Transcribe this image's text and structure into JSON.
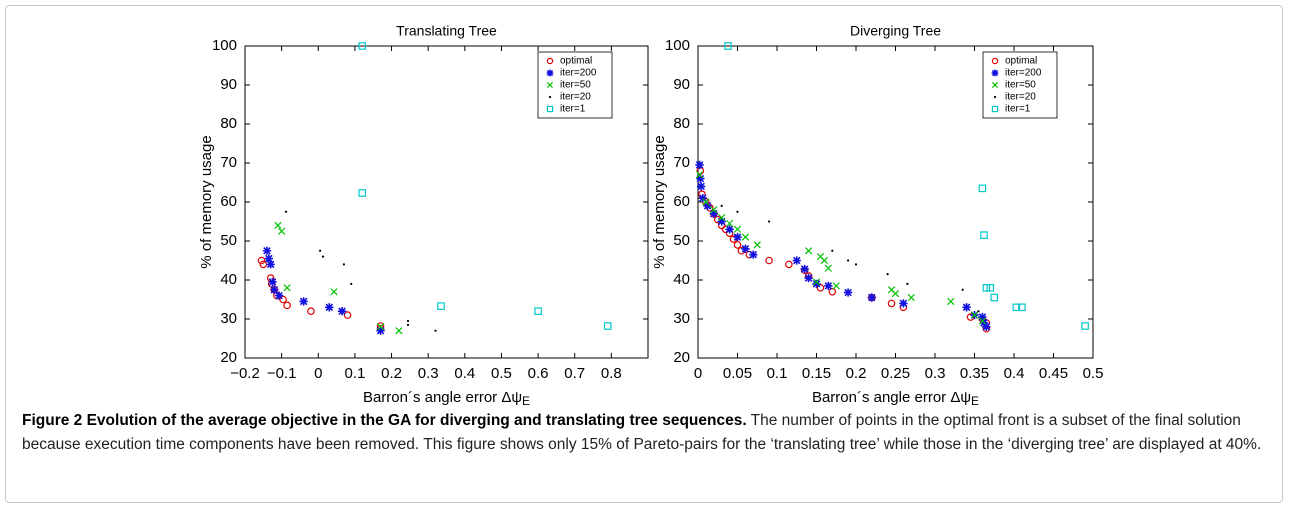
{
  "chart_data": [
    {
      "type": "scatter",
      "title": "Translating Tree",
      "xlabel": {
        "text": "Barron´s angle error Δψ",
        "subscript": "E"
      },
      "ylabel": "% of memory usage",
      "xlim": [
        -0.2,
        0.9
      ],
      "ylim": [
        20,
        100
      ],
      "xticks": [
        {
          "value": -0.2,
          "label": "−0.2"
        },
        {
          "value": -0.1,
          "label": "−0.1"
        },
        0,
        0.1,
        0.2,
        0.3,
        0.4,
        0.5,
        0.6,
        0.7,
        0.8
      ],
      "yticks": [
        20,
        30,
        40,
        50,
        60,
        70,
        80,
        90,
        100
      ],
      "legend": "upper right",
      "series": [
        {
          "name": "optimal",
          "color": "#e00000",
          "marker": "circle",
          "x": [
            -0.155,
            -0.15,
            -0.13,
            -0.127,
            -0.12,
            -0.113,
            -0.096,
            -0.085,
            -0.02,
            0.08,
            0.17,
            0.17
          ],
          "values": [
            45,
            44,
            40.5,
            39,
            37.5,
            36,
            35,
            33.5,
            32,
            31,
            28.2,
            27.5
          ]
        },
        {
          "name": "iter=200",
          "color": "#1010e0",
          "marker": "star",
          "x": [
            -0.14,
            -0.135,
            -0.13,
            -0.125,
            -0.12,
            -0.107,
            -0.04,
            0.03,
            0.065,
            0.17
          ],
          "values": [
            47.5,
            45.5,
            44,
            39.5,
            37.5,
            36,
            34.5,
            33,
            32,
            27
          ]
        },
        {
          "name": "iter=50",
          "color": "#00c000",
          "marker": "x",
          "x": [
            -0.11,
            -0.1,
            -0.085,
            0.043,
            0.22,
            0.17
          ],
          "values": [
            54,
            52.5,
            38,
            37,
            27,
            28
          ]
        },
        {
          "name": "iter=20",
          "color": "#000000",
          "marker": "dot",
          "x": [
            -0.088,
            0.005,
            0.013,
            0.07,
            0.09,
            0.245,
            0.245,
            0.32
          ],
          "values": [
            57.5,
            47.5,
            46,
            44,
            39,
            29.5,
            28.5,
            27
          ]
        },
        {
          "name": "iter=1",
          "color": "#00c8c8",
          "marker": "square",
          "x": [
            0.12,
            0.12,
            0.335,
            0.6,
            0.79
          ],
          "values": [
            100,
            62.3,
            33.3,
            32,
            28.2
          ]
        }
      ]
    },
    {
      "type": "scatter",
      "title": "Diverging Tree",
      "xlabel": {
        "text": "Barron´s angle error Δψ",
        "subscript": "E"
      },
      "ylabel": "% of memory usage",
      "xlim": [
        0,
        0.5
      ],
      "ylim": [
        20,
        100
      ],
      "xticks": [
        0,
        0.05,
        0.1,
        0.15,
        0.2,
        0.25,
        0.3,
        0.35,
        0.4,
        0.45,
        0.5
      ],
      "yticks": [
        20,
        30,
        40,
        50,
        60,
        70,
        80,
        90,
        100
      ],
      "legend": "upper right",
      "series": [
        {
          "name": "optimal",
          "color": "#e00000",
          "marker": "circle",
          "x": [
            0.003,
            0.005,
            0.01,
            0.015,
            0.02,
            0.025,
            0.03,
            0.035,
            0.04,
            0.045,
            0.05,
            0.055,
            0.065,
            0.09,
            0.115,
            0.135,
            0.14,
            0.155,
            0.17,
            0.22,
            0.245,
            0.26,
            0.345,
            0.36,
            0.365,
            0.365
          ],
          "values": [
            68,
            62,
            60,
            58.5,
            57,
            55.5,
            54,
            53,
            52,
            50.5,
            49,
            47.5,
            46.5,
            45,
            44,
            42.5,
            41,
            38,
            37,
            35.5,
            34,
            33,
            30.5,
            30,
            29,
            27.5
          ]
        },
        {
          "name": "iter=200",
          "color": "#1010e0",
          "marker": "star",
          "x": [
            0.002,
            0.003,
            0.004,
            0.006,
            0.012,
            0.02,
            0.03,
            0.04,
            0.05,
            0.06,
            0.07,
            0.125,
            0.135,
            0.14,
            0.15,
            0.165,
            0.19,
            0.22,
            0.26,
            0.34,
            0.35,
            0.36,
            0.362,
            0.365
          ],
          "values": [
            69.5,
            66,
            64,
            61,
            59,
            57,
            55,
            53,
            51,
            48,
            46.5,
            45,
            42.8,
            40.5,
            39,
            38.5,
            36.8,
            35.5,
            34,
            33,
            31,
            30.5,
            29,
            28
          ]
        },
        {
          "name": "iter=50",
          "color": "#00c000",
          "marker": "x",
          "x": [
            0.002,
            0.01,
            0.02,
            0.03,
            0.04,
            0.05,
            0.06,
            0.075,
            0.14,
            0.155,
            0.16,
            0.165,
            0.15,
            0.175,
            0.245,
            0.25,
            0.27,
            0.32,
            0.35,
            0.36
          ],
          "values": [
            67,
            60,
            58,
            56,
            54.5,
            53,
            51,
            49,
            47.5,
            46,
            45,
            43,
            39.5,
            38.5,
            37.5,
            36.5,
            35.5,
            34.5,
            31,
            29.5
          ]
        },
        {
          "name": "iter=20",
          "color": "#000000",
          "marker": "dot",
          "x": [
            0.03,
            0.05,
            0.09,
            0.17,
            0.19,
            0.2,
            0.24,
            0.265,
            0.335,
            0.355
          ],
          "values": [
            59,
            57.5,
            55,
            47.5,
            45,
            44,
            41.5,
            39,
            37.5,
            32
          ]
        },
        {
          "name": "iter=1",
          "color": "#00c8c8",
          "marker": "square",
          "x": [
            0.038,
            0.36,
            0.362,
            0.365,
            0.37,
            0.375,
            0.403,
            0.41,
            0.49
          ],
          "values": [
            100,
            63.5,
            51.5,
            38,
            38,
            35.5,
            33,
            33,
            28.2
          ]
        }
      ]
    }
  ],
  "caption": {
    "title": "Figure 2 Evolution of the average objective in the GA for diverging and translating tree sequences.",
    "text": "The number of points in the optimal front is a subset of the final solution because execution time components have been removed. This figure shows only 15% of Pareto-pairs for the ‘translating tree’ while those in the ‘diverging tree’ are displayed at 40%."
  }
}
